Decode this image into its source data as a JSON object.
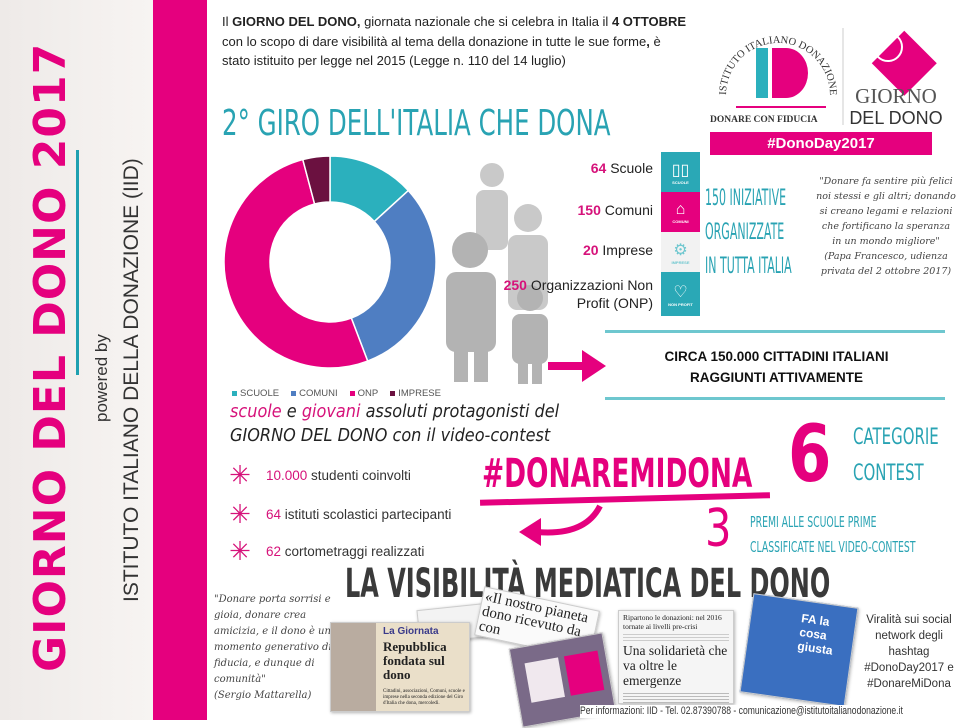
{
  "sidebar": {
    "title": "GIORNO DEL DONO 2017",
    "powered_by": "powered by",
    "institute": "ISTITUTO ITALIANO DELLA DONAZIONE (IID)"
  },
  "intro": {
    "p1": "Il ",
    "b1": "GIORNO DEL DONO,",
    "p2": " giornata nazionale che si celebra in Italia il ",
    "b2": "4 OTTOBRE",
    "p3": " con lo scopo di dare visibilità al tema della donazione in tutte le sue forme",
    "b3": ",",
    "p4": " è stato istituito per legge nel 2015 (Legge n. 110 del 14 luglio)"
  },
  "logo": {
    "arc": "ISTITUTO ITALIANO DONAZIONE",
    "mark": "ID",
    "tagline": "DONARE CON FIDUCIA",
    "event_line1": "GIORNO",
    "event_line2": "DEL DONO",
    "hashtag": "#DonoDay2017"
  },
  "section_title": "2° GIRO DELL'ITALIA CHE DONA",
  "chart_data": {
    "type": "pie",
    "donut": true,
    "categories": [
      "SCUOLE",
      "COMUNI",
      "ONP",
      "IMPRESE"
    ],
    "values": [
      64,
      150,
      250,
      20
    ],
    "colors": [
      "#2bb0bd",
      "#4f7ec2",
      "#e5007e",
      "#6b1140"
    ],
    "legend_position": "bottom"
  },
  "stats": [
    {
      "num": "64",
      "label": "Scuole",
      "icon": "book-icon",
      "tag": "SCUOLE",
      "color": "#2aa8b6"
    },
    {
      "num": "150",
      "label": "Comuni",
      "icon": "building-icon",
      "tag": "COMUNI",
      "color": "#e5007e"
    },
    {
      "num": "20",
      "label": "Imprese",
      "icon": "gears-icon",
      "tag": "IMPRESE",
      "color": "#f2f2f2"
    },
    {
      "num": "250",
      "label": "Organizzazioni Non Profit (ONP)",
      "icon": "heart-icon",
      "tag": "NON PROFIT",
      "color": "#2aa8b6"
    }
  ],
  "initiatives": {
    "line1_num": "150",
    "line1": " INIZIATIVE",
    "line2": "ORGANIZZATE",
    "line3": "IN TUTTA ITALIA"
  },
  "quote_papa": {
    "text": "\"Donare fa sentire più felici noi stessi e gli altri; donando si creano legami e relazioni che fortificano la speranza in un mondo migliore\"",
    "author": "(Papa Francesco, udienza privata del 2 ottobre 2017)"
  },
  "reach": {
    "line1": "CIRCA 150.000 CITTADINI ITALIANI",
    "line2": "RAGGIUNTI ATTIVAMENTE"
  },
  "schools": {
    "w1": "scuole",
    "w2": " e ",
    "w3": "giovani",
    "w4": " assoluti protagonisti del",
    "line2": "GIORNO DEL DONO con il video-contest"
  },
  "bullets": [
    {
      "num": "10.000",
      "text": " studenti coinvolti"
    },
    {
      "num": "64",
      "text": " istituti scolastici partecipanti"
    },
    {
      "num": "62",
      "text": " cortometraggi realizzati"
    }
  ],
  "contest": {
    "hashtag": "#DONAREMIDONA",
    "categories_num": "6",
    "categories_l1": "CATEGORIE",
    "categories_l2": "CONTEST",
    "prizes_num": "3",
    "prizes_l1": "PREMI ALLE SCUOLE PRIME",
    "prizes_l2": "CLASSIFICATE NEL VIDEO-CONTEST"
  },
  "media_title": "LA VISIBILITÀ MEDIATICA DEL DONO",
  "quote_mattarella": {
    "text": "\"Donare porta sorrisi e gioia, donare crea amicizia, e il dono è un momento generativo di fiducia, e dunque di comunità\"",
    "author": "(Sergio Mattarella)"
  },
  "clippings": {
    "c1_head": "La Giornata",
    "c1_title": "Repubblica fondata sul dono",
    "c1_body": "Cittadini, associazioni, Comuni, scuole e imprese nella seconda edizione del Giro d'Italia che dona, mercoledì.",
    "c2": "«Il nostro pianeta dono ricevuto da con",
    "c3_top": "Ripartono le donazioni: nel 2016 tornate ai livelli pre-crisi",
    "c3_head": "Una solidarietà che va oltre le emergenze",
    "tv_text": "FA la cosa giusta"
  },
  "virality": "Viralità sui social network degli hashtag #DonoDay2017 e #DonareMiDona",
  "footer": "Per informazioni: IID - Tel. 02.87390788 - comunicazione@istitutoitalianodonazione.it"
}
